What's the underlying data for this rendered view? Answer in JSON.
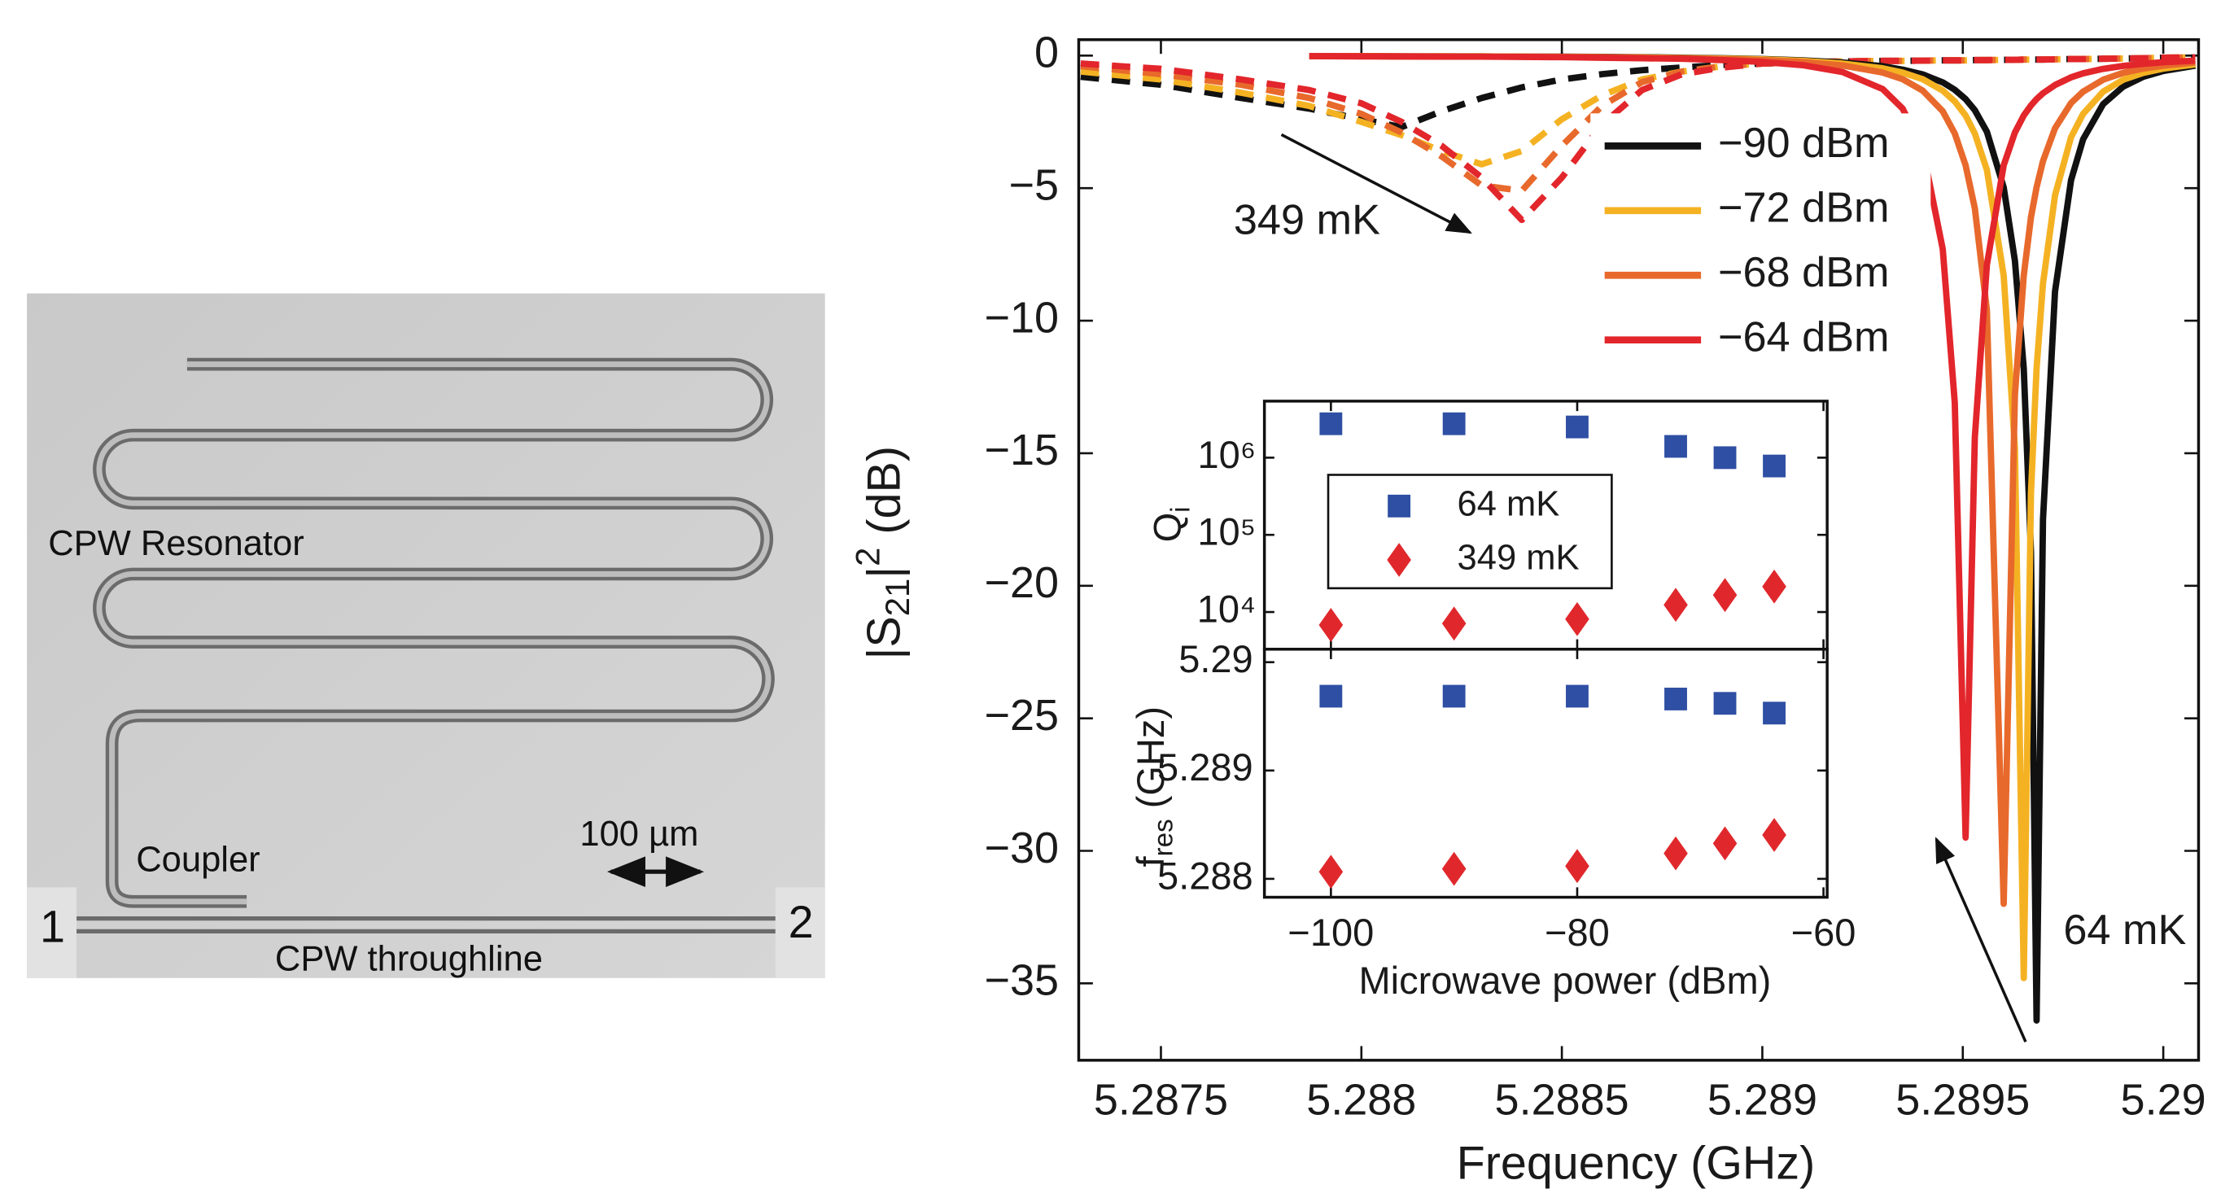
{
  "micrograph": {
    "resonator": "CPW Resonator",
    "coupler": "Coupler",
    "scale_bar": "100 µm",
    "port_1": "1",
    "port_2": "2",
    "throughline": "CPW throughline"
  },
  "chart_data": [
    {
      "type": "line",
      "xlabel": "Frequency (GHz)",
      "ylabel": [
        "|S",
        "21",
        "|",
        "2",
        " (dB)"
      ],
      "annotations": [
        "349 mK",
        "64 mK"
      ],
      "x": [
        5.2873,
        5.2875,
        5.2877,
        5.28787,
        5.288,
        5.2881,
        5.2882,
        5.2883,
        5.2884,
        5.2885,
        5.2886,
        5.2887,
        5.2888,
        5.2889,
        5.289,
        5.2891,
        5.2892,
        5.2893,
        5.28935,
        5.2894,
        5.28945,
        5.28948,
        5.289507,
        5.28953,
        5.28956,
        5.289602,
        5.28963,
        5.289652,
        5.28967,
        5.289684,
        5.2897,
        5.28973,
        5.28977,
        5.2898,
        5.28985,
        5.2899,
        5.28995,
        5.29,
        5.29008
      ],
      "series": [
        {
          "name": "−90 dBm",
          "color": "#111111",
          "values": [
            null,
            null,
            null,
            -0.02,
            -0.02,
            -0.03,
            -0.03,
            -0.03,
            -0.04,
            -0.04,
            -0.05,
            -0.06,
            -0.08,
            -0.1,
            -0.13,
            -0.18,
            -0.26,
            -0.4,
            -0.53,
            -0.71,
            -1.01,
            -1.29,
            -1.64,
            -2.06,
            -2.87,
            -4.97,
            -7.74,
            -11.8,
            -18.7,
            -36.4,
            -17.5,
            -8.9,
            -4.7,
            -3.16,
            -1.83,
            -1.17,
            -0.8,
            -0.58,
            -0.38
          ]
        },
        {
          "name": "−72 dBm",
          "color": "#f4b223",
          "values": [
            null,
            null,
            null,
            -0.02,
            -0.02,
            -0.03,
            -0.03,
            -0.03,
            -0.04,
            -0.05,
            -0.06,
            -0.07,
            -0.09,
            -0.11,
            -0.14,
            -0.2,
            -0.3,
            -0.48,
            -0.64,
            -0.89,
            -1.32,
            -1.73,
            -2.26,
            -2.94,
            -4.31,
            -8.3,
            -14.8,
            -34.8,
            -16.5,
            -11.8,
            -8.6,
            -5.27,
            -3.08,
            -2.2,
            -1.36,
            -0.91,
            -0.65,
            -0.49,
            -0.33
          ]
        },
        {
          "name": "−68 dBm",
          "color": "#e8692c",
          "values": [
            null,
            null,
            null,
            -0.02,
            -0.02,
            -0.03,
            -0.03,
            -0.04,
            -0.04,
            -0.05,
            -0.06,
            -0.08,
            -0.1,
            -0.13,
            -0.17,
            -0.24,
            -0.37,
            -0.64,
            -0.89,
            -1.32,
            -2.1,
            -2.94,
            -4.14,
            -5.76,
            -9.6,
            -32,
            -12.8,
            -8.3,
            -6.1,
            -4.97,
            -3.98,
            -2.74,
            -1.79,
            -1.36,
            -0.91,
            -0.65,
            -0.49,
            -0.38,
            -0.26
          ]
        },
        {
          "name": "−64 dBm",
          "color": "#e2262b",
          "values": [
            null,
            null,
            null,
            -0.02,
            -0.03,
            -0.03,
            -0.04,
            -0.04,
            -0.05,
            -0.06,
            -0.08,
            -0.1,
            -0.12,
            -0.17,
            -0.24,
            -0.36,
            -0.62,
            -1.26,
            -2,
            -3.53,
            -7.3,
            -13.1,
            -29.5,
            -14.4,
            -7.9,
            -4.14,
            -2.9,
            -2.26,
            -1.88,
            -1.64,
            -1.42,
            -1.11,
            -0.82,
            -0.67,
            -0.5,
            -0.39,
            -0.31,
            -0.25,
            -0.19
          ]
        }
      ],
      "dashed_series": [
        {
          "color": "#111111",
          "values": [
            -0.8,
            -1.1,
            -1.6,
            -2,
            -2.4,
            -2.7,
            -2.1,
            -1.6,
            -1.2,
            -0.9,
            -0.7,
            -0.55,
            -0.45,
            -0.35,
            -0.3,
            -0.25,
            -0.22,
            -0.2,
            -0.2,
            -0.19,
            -0.18,
            -0.18,
            -0.18,
            -0.17,
            -0.17,
            -0.16,
            -0.16,
            -0.15,
            -0.15,
            -0.15,
            -0.15,
            -0.14,
            -0.13,
            -0.13,
            -0.12,
            -0.11,
            -0.1,
            -0.08,
            -0.07
          ]
        },
        {
          "color": "#f4b223",
          "values": [
            -0.6,
            -0.9,
            -1.4,
            -1.9,
            -2.5,
            -3,
            -3.6,
            -4.1,
            -3.6,
            -2.4,
            -1.5,
            -0.9,
            -0.6,
            -0.4,
            -0.3,
            -0.25,
            -0.22,
            -0.2,
            -0.2,
            -0.19,
            -0.18,
            -0.18,
            -0.18,
            -0.17,
            -0.17,
            -0.16,
            -0.16,
            -0.15,
            -0.15,
            -0.15,
            -0.15,
            -0.14,
            -0.13,
            -0.13,
            -0.12,
            -0.11,
            -0.1,
            -0.08,
            -0.07
          ]
        },
        {
          "color": "#e8692c",
          "values": [
            -0.4,
            -0.7,
            -1.1,
            -1.6,
            -2.2,
            -2.9,
            -3.8,
            -4.9,
            -5.1,
            -3.4,
            -1.9,
            -1,
            -0.6,
            -0.4,
            -0.3,
            -0.25,
            -0.22,
            -0.2,
            -0.2,
            -0.19,
            -0.18,
            -0.18,
            -0.18,
            -0.17,
            -0.17,
            -0.16,
            -0.16,
            -0.15,
            -0.15,
            -0.15,
            -0.15,
            -0.14,
            -0.13,
            -0.13,
            -0.12,
            -0.11,
            -0.1,
            -0.08,
            -0.07
          ]
        },
        {
          "color": "#e2262b",
          "values": [
            -0.3,
            -0.5,
            -0.9,
            -1.3,
            -1.8,
            -2.5,
            -3.4,
            -4.6,
            -6.2,
            -4.6,
            -2.6,
            -1.3,
            -0.7,
            -0.45,
            -0.3,
            -0.25,
            -0.22,
            -0.2,
            -0.2,
            -0.19,
            -0.18,
            -0.18,
            -0.18,
            -0.17,
            -0.17,
            -0.16,
            -0.16,
            -0.15,
            -0.15,
            -0.15,
            -0.15,
            -0.14,
            -0.13,
            -0.13,
            -0.12,
            -0.11,
            -0.1,
            -0.08,
            -0.07
          ]
        }
      ],
      "xlim": [
        5.287295,
        5.290088
      ],
      "ylim": [
        -37.9,
        0.6
      ],
      "xticks": [
        5.2875,
        5.288,
        5.2885,
        5.289,
        5.2895,
        5.29
      ],
      "yticks": [
        0,
        {
          "value": -5,
          "label": "−5"
        },
        {
          "value": -10,
          "label": "−10"
        },
        {
          "value": -15,
          "label": "−15"
        },
        {
          "value": -20,
          "label": "−20"
        },
        {
          "value": -25,
          "label": "−25"
        },
        {
          "value": -30,
          "label": "−30"
        },
        {
          "value": -35,
          "label": "−35"
        }
      ],
      "legend": "upper right"
    },
    {
      "type": "scatter",
      "ylabel": [
        "Q",
        "i"
      ],
      "x": [
        -100,
        -90,
        -80,
        -72,
        -68,
        -64
      ],
      "series": [
        {
          "name": "64 mK",
          "color": "#2e4fa3",
          "marker": "square",
          "values": [
            2750000,
            2750000,
            2500000,
            1400000,
            1000000,
            780000
          ]
        },
        {
          "name": "349 mK",
          "color": "#e0282c",
          "marker": "diamond",
          "values": [
            6800,
            7100,
            8100,
            12400,
            16600,
            21400
          ]
        }
      ],
      "xlim": [
        -105.4,
        -59.7
      ],
      "ylim": [
        3300,
        5400000
      ],
      "log_y": true,
      "xticks": [
        -100,
        -80,
        -60
      ],
      "yticks": [
        {
          "value": 10000,
          "label": "10⁴"
        },
        {
          "value": 100000,
          "label": "10⁵"
        },
        {
          "value": 1000000,
          "label": "10⁶"
        }
      ],
      "legend": "upper left"
    },
    {
      "type": "scatter",
      "xlabel": "Microwave power (dBm)",
      "ylabel": [
        "f",
        "res",
        " (GHz)"
      ],
      "x": [
        -100,
        -90,
        -80,
        -72,
        -68,
        -64
      ],
      "series": [
        {
          "color": "#2e4fa3",
          "marker": "square",
          "values": [
            5.289686,
            5.289686,
            5.289686,
            5.28966,
            5.28962,
            5.28953
          ]
        },
        {
          "color": "#e0282c",
          "marker": "diamond",
          "values": [
            5.288065,
            5.288092,
            5.288118,
            5.288235,
            5.288327,
            5.288405
          ]
        }
      ],
      "xlim": [
        -105.4,
        -59.7
      ],
      "ylim": [
        5.28783,
        5.29012
      ],
      "xticks": [
        {
          "value": -100,
          "label": "−100"
        },
        {
          "value": -80,
          "label": "−80"
        },
        {
          "value": -60,
          "label": "−60"
        }
      ],
      "yticks": [
        5.288,
        5.289,
        5.29
      ]
    }
  ]
}
